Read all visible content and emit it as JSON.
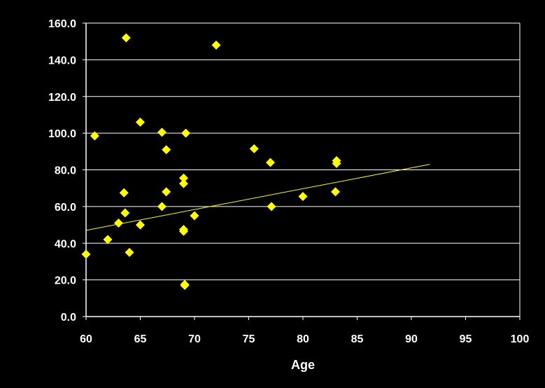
{
  "chart_data": {
    "type": "scatter",
    "title": "",
    "xlabel": "Age",
    "ylabel": "",
    "xlim": [
      60,
      100
    ],
    "ylim": [
      0,
      160
    ],
    "x_ticks": [
      "60",
      "65",
      "70",
      "75",
      "80",
      "85",
      "90",
      "95",
      "100"
    ],
    "y_ticks": [
      "0.0",
      "20.0",
      "40.0",
      "60.0",
      "80.0",
      "100.0",
      "120.0",
      "140.0",
      "160.0"
    ],
    "grid": "horizontal",
    "legend": "none",
    "colors": {
      "background": "#000000",
      "axis": "#ffffff",
      "grid": "#ffffff",
      "marker": "#ffff00",
      "trendline": "#ffff00"
    },
    "series": [
      {
        "marker": "diamond",
        "points": [
          [
            60.0,
            34.0
          ],
          [
            60.8,
            98.5
          ],
          [
            62.0,
            42.0
          ],
          [
            63.0,
            51.0
          ],
          [
            63.5,
            67.5
          ],
          [
            63.6,
            56.5
          ],
          [
            63.7,
            152.0
          ],
          [
            64.0,
            35.0
          ],
          [
            65.0,
            106.0
          ],
          [
            65.0,
            50.0
          ],
          [
            67.0,
            100.5
          ],
          [
            67.0,
            60.0
          ],
          [
            67.4,
            91.0
          ],
          [
            67.4,
            68.0
          ],
          [
            69.0,
            75.5
          ],
          [
            69.0,
            72.5
          ],
          [
            69.0,
            47.5
          ],
          [
            69.0,
            46.5
          ],
          [
            69.1,
            17.5
          ],
          [
            69.1,
            17.0
          ],
          [
            69.2,
            100.0
          ],
          [
            70.0,
            55.0
          ],
          [
            72.0,
            148.0
          ],
          [
            75.5,
            91.5
          ],
          [
            77.0,
            84.0
          ],
          [
            77.1,
            60.0
          ],
          [
            80.0,
            65.5
          ],
          [
            83.0,
            68.0
          ],
          [
            83.1,
            85.0
          ],
          [
            83.1,
            83.5
          ]
        ]
      }
    ],
    "trendline": {
      "type": "linear",
      "x_range": [
        60,
        91.7
      ],
      "y_range": [
        47,
        83
      ]
    }
  }
}
